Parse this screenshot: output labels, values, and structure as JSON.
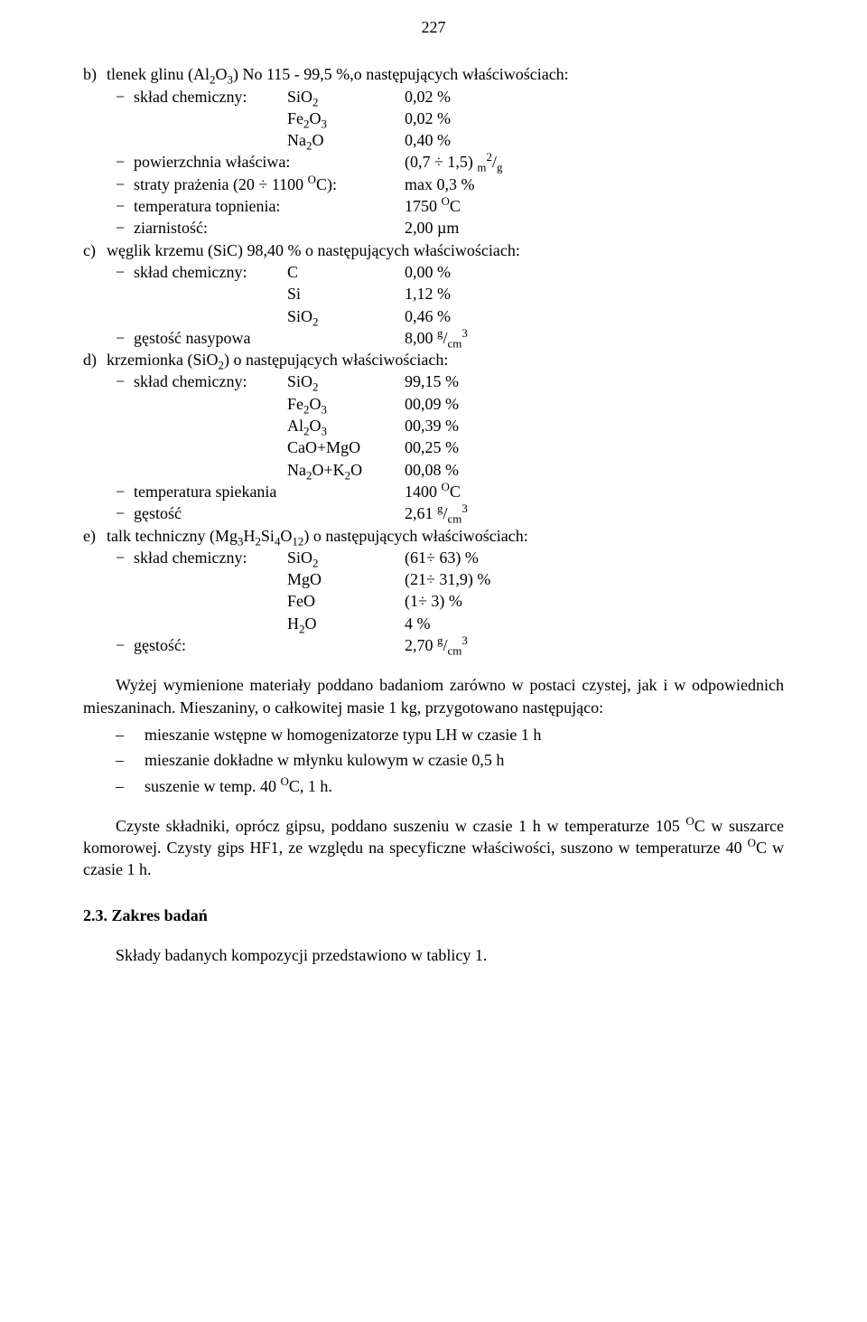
{
  "page_number": "227",
  "items": {
    "b": {
      "letter": "b)",
      "title_html": "tlenek glinu (Al<sub>2</sub>O<sub>3</sub>) No 115 - 99,5 %,o następujących właściwościach:",
      "chem_label": "skład chemiczny:",
      "chem": [
        {
          "name_html": "SiO<sub>2</sub>",
          "val": "0,02 %"
        },
        {
          "name_html": "Fe<sub>2</sub>O<sub>3</sub>",
          "val": "0,02 %"
        },
        {
          "name_html": "Na<sub>2</sub>O",
          "val": "0,40 %"
        }
      ],
      "rows": [
        {
          "label": "powierzchnia właściwa:",
          "val_html": "(0,7 ÷ 1,5) <sub>m</sub><sup>2</sup>/<sub>g</sub>"
        },
        {
          "label_html": "straty prażenia (20 ÷ 1100 <sup>O</sup>C):",
          "val": "max 0,3 %"
        },
        {
          "label": "temperatura topnienia:",
          "val_html": "1750 <sup>O</sup>C"
        },
        {
          "label": "ziarnistość:",
          "val": "2,00 µm"
        }
      ]
    },
    "c": {
      "letter": "c)",
      "title": "węglik krzemu (SiC) 98,40 % o następujących właściwościach:",
      "chem_label": "skład chemiczny:",
      "chem": [
        {
          "name": "C",
          "val": "0,00 %"
        },
        {
          "name": "Si",
          "val": "1,12 %"
        },
        {
          "name_html": "SiO<sub>2</sub>",
          "val": "0,46 %"
        }
      ],
      "rows": [
        {
          "label": "gęstość nasypowa",
          "val_html": "8,00 <sup>g</sup>/<sub>cm</sub><sup>3</sup>"
        }
      ]
    },
    "d": {
      "letter": "d)",
      "title_html": "krzemionka (SiO<sub>2</sub>) o następujących właściwościach:",
      "chem_label": "skład chemiczny:",
      "chem": [
        {
          "name_html": "SiO<sub>2</sub>",
          "val": "99,15 %"
        },
        {
          "name_html": "Fe<sub>2</sub>O<sub>3</sub>",
          "val": "00,09 %"
        },
        {
          "name_html": "Al<sub>2</sub>O<sub>3</sub>",
          "val": "00,39 %"
        },
        {
          "name": "CaO+MgO",
          "val": "00,25 %"
        },
        {
          "name_html": "Na<sub>2</sub>O+K<sub>2</sub>O",
          "val": "00,08 %"
        }
      ],
      "rows": [
        {
          "label": "temperatura spiekania",
          "val_html": "1400 <sup>O</sup>C"
        },
        {
          "label": "gęstość",
          "val_html": "2,61 <sup>g</sup>/<sub>cm</sub><sup>3</sup>"
        }
      ]
    },
    "e": {
      "letter": "e)",
      "title_html": "talk techniczny (Mg<sub>3</sub>H<sub>2</sub>Si<sub>4</sub>O<sub>12</sub>) o następujących właściwościach:",
      "chem_label": "skład chemiczny:",
      "chem": [
        {
          "name_html": "SiO<sub>2</sub>",
          "val": "(61÷ 63) %"
        },
        {
          "name": "MgO",
          "val": "(21÷ 31,9) %"
        },
        {
          "name": "FeO",
          "val": "(1÷ 3) %"
        },
        {
          "name_html": "H<sub>2</sub>O",
          "val": "4  %"
        }
      ],
      "rows": [
        {
          "label": "gęstość:",
          "val_html": "2,70 <sup>g</sup>/<sub>cm</sub><sup>3</sup>"
        }
      ]
    }
  },
  "para1": "Wyżej wymienione materiały poddano badaniom zarówno w postaci czystej, jak i w odpowiednich mieszaninach. Mieszaniny, o całkowitej masie 1 kg, przygotowano następująco:",
  "bullets": [
    "mieszanie wstępne w homogenizatorze typu LH w czasie 1 h",
    "mieszanie dokładne w młynku kulowym w czasie 0,5 h",
    {
      "html": "suszenie w temp. 40 <sup>O</sup>C, 1 h."
    }
  ],
  "para2_html": "Czyste składniki, oprócz gipsu, poddano suszeniu w czasie 1 h w temperaturze 105 <sup>O</sup>C w suszarce komorowej. Czysty gips HF1, ze względu na specyficzne właściwości, suszono w temperaturze 40 <sup>O</sup>C w czasie 1 h.",
  "section_head": "2.3.  Zakres badań",
  "para3": "Składy badanych kompozycji przedstawiono w tablicy 1."
}
